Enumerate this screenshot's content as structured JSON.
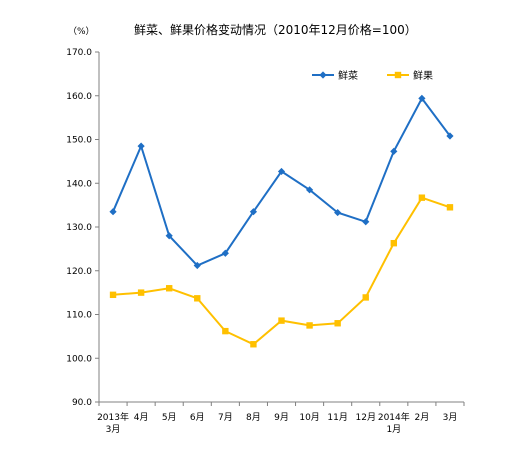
{
  "chart_data": {
    "type": "line",
    "title": "鲜菜、鲜果价格变动情况（2010年12月价格=100）",
    "unit": "（%）",
    "categories": [
      [
        "2013年",
        "3月"
      ],
      [
        "4月"
      ],
      [
        "5月"
      ],
      [
        "6月"
      ],
      [
        "7月"
      ],
      [
        "8月"
      ],
      [
        "9月"
      ],
      [
        "10月"
      ],
      [
        "11月"
      ],
      [
        "12月"
      ],
      [
        "2014年",
        "1月"
      ],
      [
        "2月"
      ],
      [
        "3月"
      ]
    ],
    "ylim": [
      90,
      170
    ],
    "yticks": [
      "90.0",
      "100.0",
      "110.0",
      "120.0",
      "130.0",
      "140.0",
      "150.0",
      "160.0",
      "170.0"
    ],
    "grid": false,
    "legend": "top-right",
    "series": [
      {
        "name": "鲜菜",
        "color": "#1f6fc5",
        "marker": "diamond",
        "values": [
          133.5,
          148.5,
          128.0,
          121.2,
          124.0,
          133.5,
          142.7,
          138.5,
          133.3,
          131.2,
          147.3,
          159.4,
          150.8
        ]
      },
      {
        "name": "鲜果",
        "color": "#ffc000",
        "marker": "square",
        "values": [
          114.5,
          115.0,
          116.0,
          113.7,
          106.2,
          103.2,
          108.6,
          107.5,
          108.0,
          113.9,
          126.3,
          136.7,
          134.5
        ]
      }
    ]
  }
}
